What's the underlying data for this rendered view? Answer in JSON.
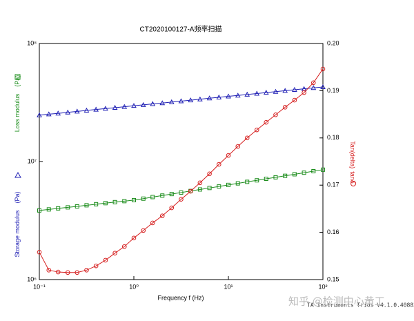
{
  "chart_data": {
    "type": "line",
    "title": "CT2020100127-A频率扫描",
    "xlabel": "Frequency f (Hz)",
    "ylabel_unit": "(Pa)",
    "y2label_unit": "tanδ",
    "watermark": "知乎 @检测中心黄工",
    "software": "TA Instruments Trios V4.1.0.40883",
    "xscale": "log",
    "yscale": "log",
    "xlim": [
      0.1,
      100
    ],
    "xticks": [
      {
        "value": 0.1,
        "label": "10⁻¹"
      },
      {
        "value": 1,
        "label": "10⁰"
      },
      {
        "value": 10,
        "label": "10¹"
      },
      {
        "value": 100,
        "label": "10²"
      }
    ],
    "ylim": [
      1000000,
      100000000
    ],
    "yticks": [
      {
        "value": 1000000,
        "label": "10⁶"
      },
      {
        "value": 10000000,
        "label": "10⁷"
      },
      {
        "value": 100000000,
        "label": "10⁸"
      }
    ],
    "y2lim": [
      0.15,
      0.2
    ],
    "y2ticks": [
      0.15,
      0.16,
      0.17,
      0.18,
      0.19,
      {
        "value": 0.2,
        "label": "0.20"
      }
    ],
    "x": [
      0.1,
      0.126,
      0.158,
      0.2,
      0.251,
      0.316,
      0.398,
      0.501,
      0.631,
      0.794,
      1,
      1.26,
      1.58,
      2,
      2.51,
      3.16,
      3.98,
      5.01,
      6.31,
      7.94,
      10,
      12.6,
      15.8,
      20,
      25.1,
      31.6,
      39.8,
      50.1,
      63.1,
      79.4,
      100
    ],
    "series": [
      {
        "name": "Storage modulus",
        "color": "#1f1fb4",
        "marker": "triangle",
        "axis": "y",
        "values": [
          24700000,
          25200000,
          25600000,
          26100000,
          26600000,
          27100000,
          27600000,
          28100000,
          28600000,
          29100000,
          29700000,
          30200000,
          30800000,
          31300000,
          31900000,
          32500000,
          33100000,
          33700000,
          34400000,
          35000000,
          35700000,
          36300000,
          37000000,
          37700000,
          38400000,
          39100000,
          39800000,
          40600000,
          41300000,
          42100000,
          42800000
        ]
      },
      {
        "name": "Loss modulus",
        "color": "#1a8c1a",
        "marker": "square",
        "axis": "y",
        "values": [
          3850000,
          3930000,
          4010000,
          4090000,
          4170000,
          4260000,
          4350000,
          4440000,
          4530000,
          4620000,
          4710000,
          4850000,
          5000000,
          5150000,
          5300000,
          5460000,
          5630000,
          5800000,
          5970000,
          6150000,
          6340000,
          6530000,
          6730000,
          6930000,
          7140000,
          7350000,
          7570000,
          7800000,
          8040000,
          8280000,
          8530000
        ]
      },
      {
        "name": "Tan(delta)",
        "color": "#d62020",
        "marker": "circle",
        "axis": "y2",
        "values": [
          0.1558,
          0.152,
          0.1516,
          0.1515,
          0.1515,
          0.152,
          0.1529,
          0.1541,
          0.1556,
          0.157,
          0.1588,
          0.1604,
          0.162,
          0.1635,
          0.1652,
          0.167,
          0.1687,
          0.1705,
          0.1724,
          0.1744,
          0.1763,
          0.1782,
          0.18,
          0.1817,
          0.1833,
          0.1849,
          0.1865,
          0.188,
          0.1896,
          0.1917,
          0.1946
        ]
      }
    ]
  }
}
